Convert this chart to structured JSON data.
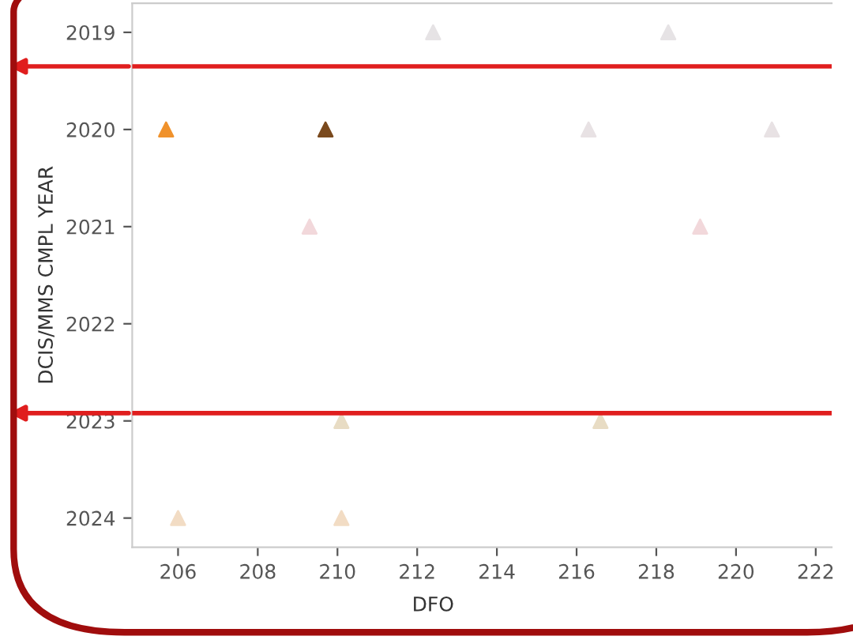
{
  "chart_data": {
    "type": "scatter",
    "xlabel": "DFO",
    "ylabel": "DCIS/MMS CMPL YEAR",
    "series": [
      {
        "x": [
          212.4,
          218.3,
          205.7,
          209.7,
          216.3,
          220.9,
          209.3,
          219.1,
          210.1,
          216.6,
          206.0,
          210.1
        ],
        "values": [
          2019,
          2019,
          2020,
          2020,
          2020,
          2020,
          2021,
          2021,
          2023,
          2023,
          2024,
          2024
        ],
        "colors": [
          "#e6e3e5",
          "#e6e3e5",
          "#f0922c",
          "#7a4a1e",
          "#e8e2e4",
          "#e8e2e4",
          "#f2d8db",
          "#f2d8db",
          "#e8dcc4",
          "#e8dcc4",
          "#f2dcc4",
          "#f2dcc4"
        ]
      }
    ],
    "xlim": [
      204.85,
      222.4
    ],
    "xticks": [
      206,
      208,
      210,
      212,
      214,
      216,
      218,
      220,
      222
    ],
    "ylim": [
      2024.3,
      2018.7
    ],
    "yticks": [
      2019,
      2020,
      2021,
      2022,
      2023,
      2024
    ],
    "ref_lines": [
      {
        "axis": "y",
        "value": 2019.35,
        "color": "#e01e1e"
      },
      {
        "axis": "y",
        "value": 2022.92,
        "color": "#e01e1e"
      }
    ],
    "marker": "triangle",
    "grid": false,
    "legend": false
  }
}
